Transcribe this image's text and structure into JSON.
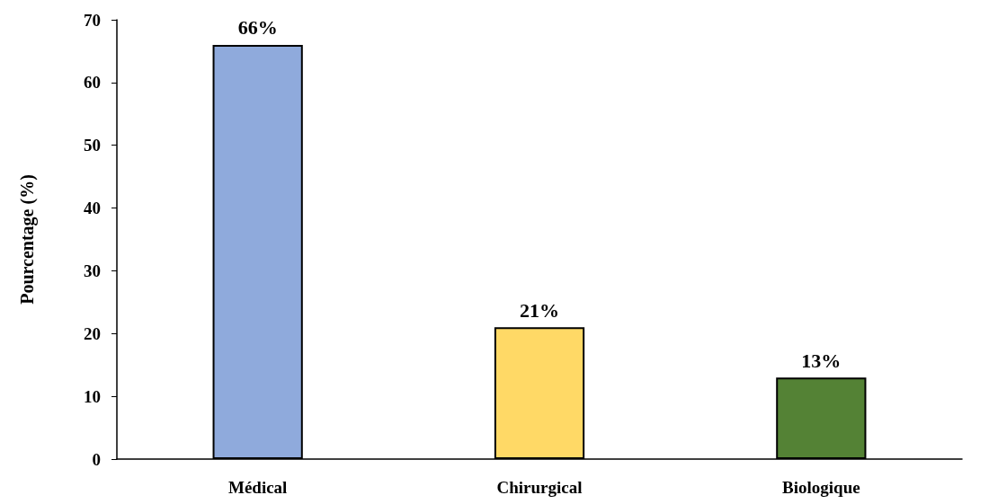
{
  "chart_data": {
    "type": "bar",
    "ylabel": "Pourcentage (%)",
    "categories": [
      "Médical",
      "Chirurgical",
      "Biologique"
    ],
    "values": [
      66,
      21,
      13
    ],
    "colors": [
      "#8faadc",
      "#ffd966",
      "#548235"
    ],
    "value_labels": [
      "66%",
      "21%",
      "13%"
    ],
    "ylim": [
      0,
      70
    ],
    "yticks": [
      0,
      10,
      20,
      30,
      40,
      50,
      60,
      70
    ],
    "grid": false
  }
}
